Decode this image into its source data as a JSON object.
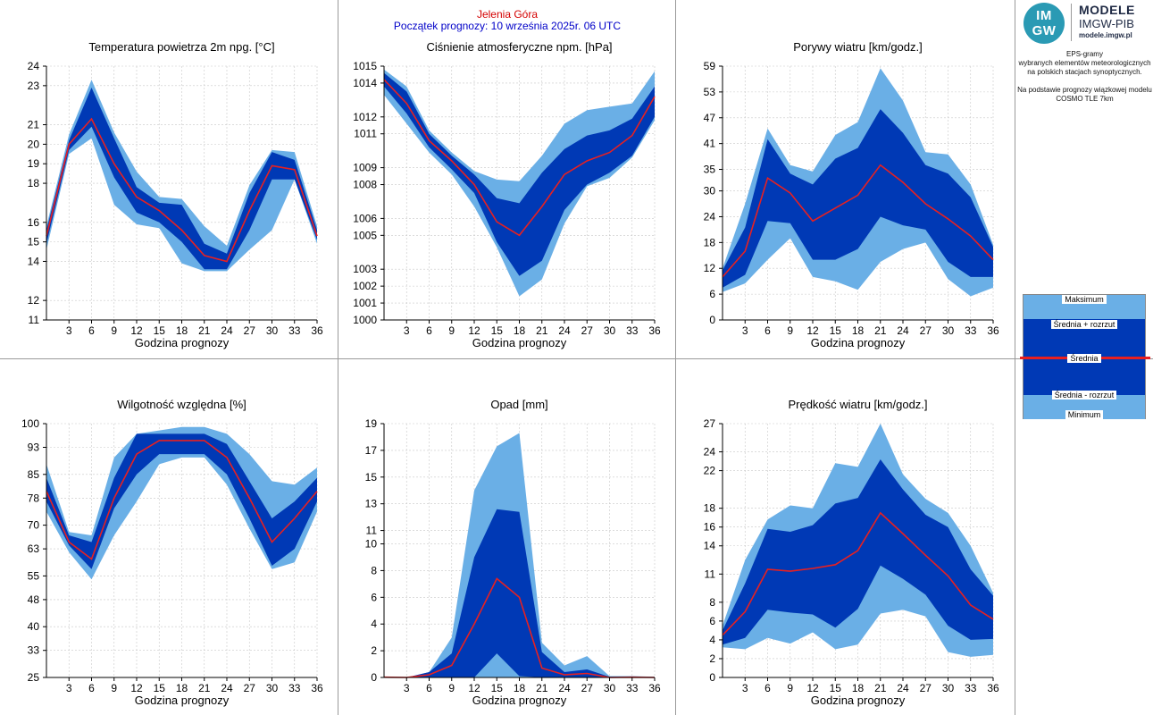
{
  "header": {
    "city": "Jelenia Góra",
    "forecast_start": "Początek prognozy: 10 września 2025r. 06 UTC"
  },
  "logo": {
    "badge_top": "IM",
    "badge_bottom": "GW",
    "line1": "MODELE",
    "line2": "IMGW-PIB",
    "line3": "modele.imgw.pl"
  },
  "side_info": [
    "EPS-gramy",
    "wybranych elementów meteorologicznych",
    "na polskich stacjach  synoptycznych.",
    "",
    "Na podstawie prognozy wiązkowej modelu",
    "COSMO TLE 7km"
  ],
  "legend": {
    "max": "Maksimum",
    "mean_plus": "Średnia + rozrzut",
    "mean": "Średnia",
    "mean_minus": "Średnia - rozrzut",
    "min": "Minimum"
  },
  "colors": {
    "light_band": "#6aafe6",
    "dark_band": "#0039b5",
    "mean_line": "#e82020",
    "grid": "#c8c8c8",
    "divider": "#9a9a9a"
  },
  "chart_data": [
    {
      "type": "area",
      "title": "Temperatura powietrza 2m npg. [°C]",
      "xlabel": "Godzina prognozy",
      "ylabel": "",
      "x": [
        0,
        3,
        6,
        9,
        12,
        15,
        18,
        21,
        24,
        27,
        30,
        33,
        36
      ],
      "xticks": [
        3,
        6,
        9,
        12,
        15,
        18,
        21,
        24,
        27,
        30,
        33,
        36
      ],
      "yticks": [
        11,
        12,
        14,
        15,
        16,
        18,
        19,
        20,
        21,
        23,
        24
      ],
      "ylim": [
        11,
        24
      ],
      "grid": true,
      "series": [
        {
          "name": "Maksimum",
          "values": [
            15.8,
            20.5,
            23.3,
            20.6,
            18.6,
            17.3,
            17.2,
            15.8,
            14.8,
            17.9,
            19.7,
            19.6,
            15.8
          ]
        },
        {
          "name": "Średnia + rozrzut",
          "values": [
            15.6,
            20.2,
            22.9,
            20.3,
            17.8,
            17.0,
            16.9,
            14.9,
            14.4,
            17.5,
            19.6,
            19.2,
            15.6
          ]
        },
        {
          "name": "Średnia",
          "values": [
            15.3,
            20.0,
            21.3,
            19.0,
            17.3,
            16.6,
            15.6,
            14.3,
            14.0,
            16.6,
            18.9,
            18.7,
            15.3
          ]
        },
        {
          "name": "Średnia - rozrzut",
          "values": [
            14.9,
            19.7,
            20.9,
            18.3,
            16.5,
            16.0,
            15.0,
            13.6,
            13.6,
            15.6,
            18.2,
            18.2,
            15.1
          ]
        },
        {
          "name": "Minimum",
          "values": [
            14.6,
            19.5,
            20.3,
            16.9,
            15.9,
            15.7,
            13.9,
            13.5,
            13.5,
            14.6,
            15.6,
            18.2,
            14.9
          ]
        }
      ]
    },
    {
      "type": "area",
      "title": "Ciśnienie atmosferyczne npm. [hPa]",
      "xlabel": "Godzina prognozy",
      "ylabel": "",
      "x": [
        0,
        3,
        6,
        9,
        12,
        15,
        18,
        21,
        24,
        27,
        30,
        33,
        36
      ],
      "xticks": [
        3,
        6,
        9,
        12,
        15,
        18,
        21,
        24,
        27,
        30,
        33,
        36
      ],
      "yticks": [
        1000,
        1001,
        1002,
        1003,
        1005,
        1006,
        1008,
        1009,
        1011,
        1012,
        1014,
        1015
      ],
      "ylim": [
        1000,
        1015
      ],
      "grid": true,
      "series": [
        {
          "name": "Maksimum",
          "values": [
            1014.8,
            1013.8,
            1011.2,
            1009.9,
            1008.8,
            1008.3,
            1008.2,
            1009.7,
            1011.6,
            1012.4,
            1012.6,
            1012.8,
            1014.7
          ]
        },
        {
          "name": "Średnia + rozrzut",
          "values": [
            1014.6,
            1013.5,
            1011.0,
            1009.7,
            1008.6,
            1007.2,
            1006.9,
            1008.7,
            1010.1,
            1010.9,
            1011.2,
            1011.9,
            1013.8
          ]
        },
        {
          "name": "Średnia",
          "values": [
            1014.2,
            1012.8,
            1010.6,
            1009.4,
            1008.0,
            1005.8,
            1005.0,
            1006.7,
            1008.6,
            1009.4,
            1009.9,
            1010.9,
            1013.2
          ]
        },
        {
          "name": "Średnia - rozrzut",
          "values": [
            1013.8,
            1012.2,
            1010.2,
            1008.9,
            1007.5,
            1004.6,
            1002.6,
            1003.5,
            1006.5,
            1008.0,
            1008.7,
            1009.7,
            1012.0
          ]
        },
        {
          "name": "Minimum",
          "values": [
            1013.3,
            1011.6,
            1009.9,
            1008.6,
            1006.7,
            1004.3,
            1001.4,
            1002.4,
            1005.7,
            1007.9,
            1008.4,
            1009.6,
            1011.8
          ]
        }
      ]
    },
    {
      "type": "area",
      "title": "Porywy wiatru [km/godz.]",
      "xlabel": "Godzina prognozy",
      "ylabel": "",
      "x": [
        0,
        3,
        6,
        9,
        12,
        15,
        18,
        21,
        24,
        27,
        30,
        33,
        36
      ],
      "xticks": [
        3,
        6,
        9,
        12,
        15,
        18,
        21,
        24,
        27,
        30,
        33,
        36
      ],
      "yticks": [
        0,
        6,
        12,
        18,
        24,
        30,
        35,
        41,
        47,
        53,
        59
      ],
      "ylim": [
        0,
        59
      ],
      "grid": true,
      "series": [
        {
          "name": "Maksimum",
          "values": [
            12.0,
            27.0,
            44.5,
            36.0,
            34.5,
            43.0,
            46.0,
            58.5,
            51.0,
            39.0,
            38.5,
            31.5,
            17.5
          ]
        },
        {
          "name": "Średnia + rozrzut",
          "values": [
            11.5,
            21.5,
            42.0,
            34.0,
            31.5,
            37.5,
            40.0,
            49.0,
            43.5,
            36.0,
            34.0,
            28.5,
            17.0
          ]
        },
        {
          "name": "Średnia",
          "values": [
            10.0,
            16.0,
            33.0,
            29.5,
            23.0,
            26.0,
            29.0,
            36.0,
            32.0,
            27.0,
            23.5,
            19.5,
            14.0
          ]
        },
        {
          "name": "Średnia - rozrzut",
          "values": [
            7.5,
            10.5,
            23.0,
            22.5,
            14.0,
            14.0,
            16.5,
            24.0,
            22.0,
            21.0,
            13.5,
            10.0,
            10.0
          ]
        },
        {
          "name": "Minimum",
          "values": [
            6.5,
            8.5,
            14.0,
            19.0,
            10.0,
            9.0,
            7.0,
            13.5,
            16.5,
            18.0,
            9.5,
            5.5,
            7.5
          ]
        }
      ]
    },
    {
      "type": "area",
      "title": "Wilgotność względna [%]",
      "xlabel": "Godzina prognozy",
      "ylabel": "",
      "x": [
        0,
        3,
        6,
        9,
        12,
        15,
        18,
        21,
        24,
        27,
        30,
        33,
        36
      ],
      "xticks": [
        3,
        6,
        9,
        12,
        15,
        18,
        21,
        24,
        27,
        30,
        33,
        36
      ],
      "yticks": [
        25,
        33,
        40,
        48,
        55,
        63,
        70,
        78,
        85,
        93,
        100
      ],
      "ylim": [
        25,
        100
      ],
      "grid": true,
      "series": [
        {
          "name": "Maksimum",
          "values": [
            88,
            68,
            67,
            90,
            97,
            98,
            99,
            99,
            97,
            91,
            83,
            82,
            87
          ]
        },
        {
          "name": "Średnia + rozrzut",
          "values": [
            84,
            67,
            65,
            84,
            97,
            97,
            97,
            97,
            94,
            83,
            72,
            77,
            84
          ]
        },
        {
          "name": "Średnia",
          "values": [
            80,
            65,
            60,
            78,
            91,
            95,
            95,
            95,
            90,
            78,
            65,
            72,
            80
          ]
        },
        {
          "name": "Średnia - rozrzut",
          "values": [
            77,
            64,
            57,
            75,
            85,
            91,
            91,
            91,
            85,
            72,
            58,
            63,
            77
          ]
        },
        {
          "name": "Minimum",
          "values": [
            74,
            62,
            54,
            67,
            77,
            88,
            90,
            90,
            82,
            69,
            57,
            59,
            74
          ]
        }
      ]
    },
    {
      "type": "area",
      "title": "Opad [mm]",
      "xlabel": "Godzina prognozy",
      "ylabel": "",
      "x": [
        0,
        3,
        6,
        9,
        12,
        15,
        18,
        21,
        24,
        27,
        30,
        33,
        36
      ],
      "xticks": [
        3,
        6,
        9,
        12,
        15,
        18,
        21,
        24,
        27,
        30,
        33,
        36
      ],
      "yticks": [
        0,
        2,
        4,
        6,
        8,
        10,
        11,
        13,
        15,
        17,
        19
      ],
      "ylim": [
        0,
        19
      ],
      "grid": true,
      "series": [
        {
          "name": "Maksimum",
          "values": [
            0.05,
            0.0,
            0.4,
            3.0,
            14.0,
            17.3,
            18.3,
            2.6,
            0.9,
            1.6,
            0.1,
            0.1,
            0.05
          ]
        },
        {
          "name": "Średnia + rozrzut",
          "values": [
            0.05,
            0.0,
            0.4,
            1.8,
            9.0,
            12.6,
            12.4,
            1.9,
            0.4,
            0.6,
            0.05,
            0.05,
            0.0
          ]
        },
        {
          "name": "Średnia",
          "values": [
            0.02,
            0.0,
            0.2,
            0.9,
            4.0,
            7.4,
            6.0,
            0.7,
            0.2,
            0.3,
            0.0,
            0.02,
            0.0
          ]
        },
        {
          "name": "Średnia - rozrzut",
          "values": [
            0.0,
            0.0,
            0.0,
            0.0,
            0.0,
            1.8,
            0.1,
            0.0,
            0.0,
            0.0,
            0.0,
            0.0,
            0.0
          ]
        },
        {
          "name": "Minimum",
          "values": [
            0.0,
            0.0,
            0.0,
            0.0,
            0.0,
            0.0,
            0.0,
            0.0,
            0.0,
            0.0,
            0.0,
            0.0,
            0.0
          ]
        }
      ]
    },
    {
      "type": "area",
      "title": "Prędkość wiatru [km/godz.]",
      "xlabel": "Godzina prognozy",
      "ylabel": "",
      "x": [
        0,
        3,
        6,
        9,
        12,
        15,
        18,
        21,
        24,
        27,
        30,
        33,
        36
      ],
      "xticks": [
        3,
        6,
        9,
        12,
        15,
        18,
        21,
        24,
        27,
        30,
        33,
        36
      ],
      "yticks": [
        0,
        2,
        4,
        6,
        8,
        11,
        14,
        16,
        18,
        22,
        24,
        27
      ],
      "ylim": [
        0,
        27
      ],
      "grid": true,
      "series": [
        {
          "name": "Maksimum",
          "values": [
            5.5,
            12.5,
            16.8,
            18.3,
            18.0,
            22.8,
            22.4,
            27.0,
            21.6,
            19.0,
            17.5,
            14.0,
            9.0
          ]
        },
        {
          "name": "Średnia + rozrzut",
          "values": [
            5.0,
            10.0,
            15.8,
            15.5,
            16.2,
            18.5,
            19.1,
            23.2,
            20.0,
            17.3,
            16.0,
            11.5,
            8.7
          ]
        },
        {
          "name": "Średnia",
          "values": [
            4.5,
            7.0,
            11.5,
            11.3,
            11.6,
            12.0,
            13.5,
            17.5,
            15.3,
            13.0,
            10.8,
            7.7,
            6.2
          ]
        },
        {
          "name": "Średnia - rozrzut",
          "values": [
            3.5,
            4.2,
            7.2,
            6.9,
            6.7,
            5.3,
            7.3,
            11.9,
            10.5,
            8.8,
            5.5,
            4.0,
            4.1
          ]
        },
        {
          "name": "Minimum",
          "values": [
            3.2,
            3.0,
            4.2,
            3.6,
            4.8,
            3.0,
            3.5,
            6.8,
            7.2,
            6.5,
            2.7,
            2.2,
            2.4
          ]
        }
      ]
    }
  ]
}
